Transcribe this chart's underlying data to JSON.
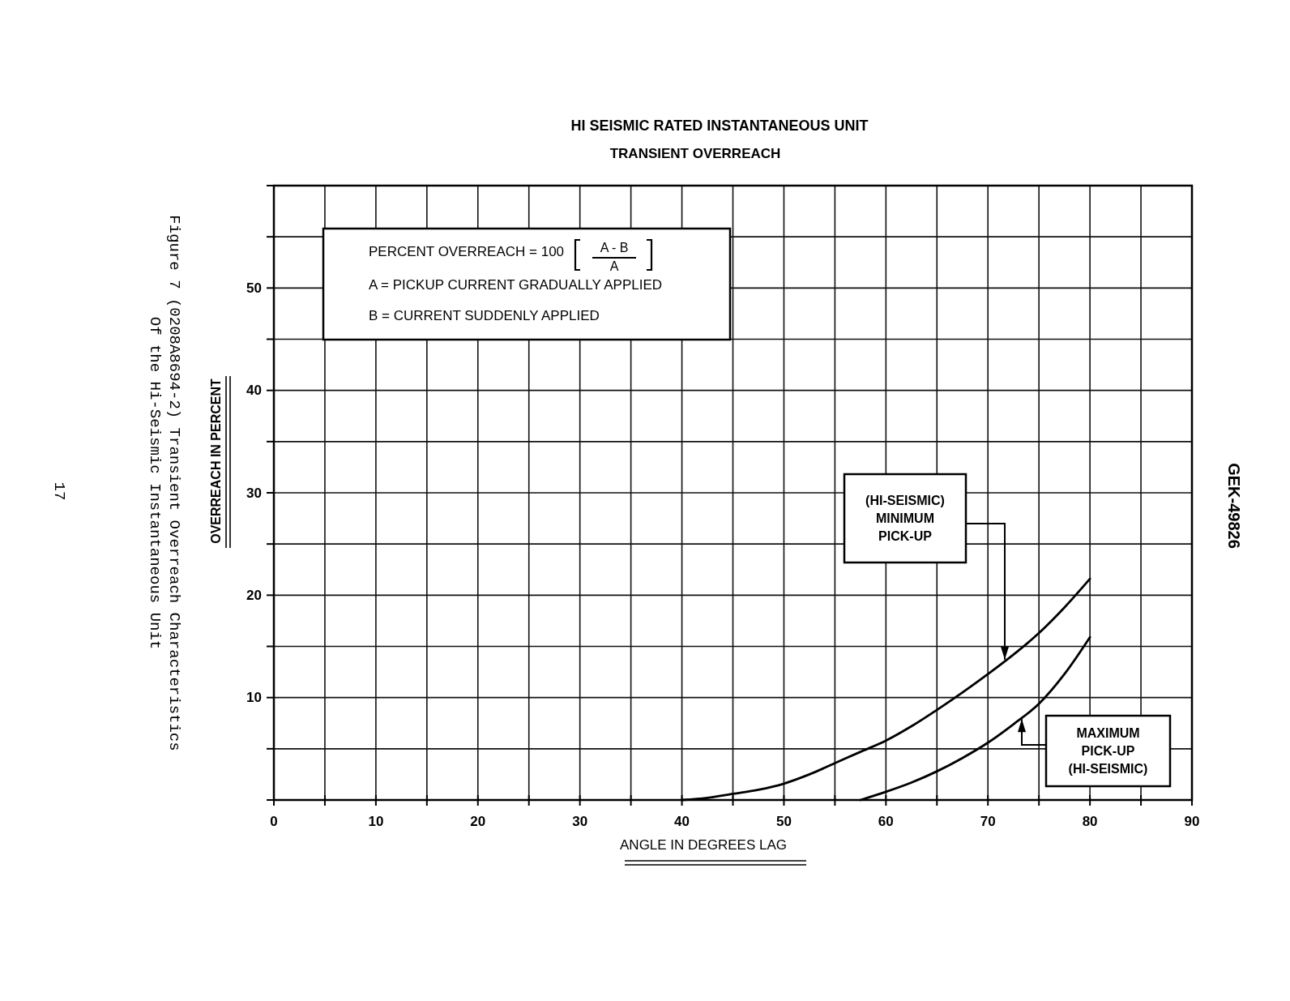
{
  "chart_data": {
    "type": "line",
    "title": "HI SEISMIC RATED INSTANTANEOUS UNIT",
    "subtitle": "TRANSIENT OVERREACH",
    "xlabel": "ANGLE IN DEGREES LAG",
    "ylabel": "OVERREACH IN PERCENT",
    "xlim": [
      0,
      90
    ],
    "ylim": [
      0,
      60
    ],
    "xticks": [
      0,
      {
        "value": 5,
        "label": null
      },
      10,
      {
        "value": 15,
        "label": null
      },
      20,
      {
        "value": 25,
        "label": null
      },
      30,
      {
        "value": 35,
        "label": null
      },
      40,
      {
        "value": 45,
        "label": null
      },
      50,
      {
        "value": 55,
        "label": null
      },
      60,
      {
        "value": 65,
        "label": null
      },
      70,
      {
        "value": 75,
        "label": null
      },
      80,
      {
        "value": 85,
        "label": null
      },
      90
    ],
    "yticks": [
      {
        "value": 0,
        "label": null
      },
      {
        "value": 5,
        "label": null
      },
      10,
      {
        "value": 15,
        "label": null
      },
      20,
      {
        "value": 25,
        "label": null
      },
      30,
      {
        "value": 35,
        "label": null
      },
      40,
      {
        "value": 45,
        "label": null
      },
      50,
      {
        "value": 55,
        "label": null
      },
      {
        "value": 60,
        "label": null
      }
    ],
    "grid": true,
    "line_style": "solid",
    "series": [
      {
        "color": "#000000",
        "x": [
          40,
          42.5,
          45,
          47.5,
          50,
          52.5,
          55,
          57.5,
          60,
          62.5,
          65,
          67.5,
          70,
          72.5,
          75,
          77.5,
          80
        ],
        "values": [
          0,
          0.2,
          0.6,
          1.0,
          1.6,
          2.5,
          3.6,
          4.7,
          5.8,
          7.2,
          8.8,
          10.5,
          12.3,
          14.2,
          16.3,
          18.8,
          21.6
        ]
      },
      {
        "color": "#000000",
        "x": [
          57.5,
          60,
          62.5,
          65,
          67.5,
          70,
          72.5,
          75,
          77.5,
          80
        ],
        "values": [
          0,
          0.8,
          1.7,
          2.8,
          4.1,
          5.6,
          7.4,
          9.4,
          12.3,
          15.9
        ]
      }
    ],
    "annotations": [
      "PERCENT OVERREACH = 100",
      "A - B",
      "A",
      "A = PICKUP CURRENT GRADUALLY APPLIED",
      "B = CURRENT SUDDENLY APPLIED",
      "Figure 7 (0208A8694-2) Transient Overreach Characteristics",
      "Of the Hi-Seismic Instantaneous Unit",
      "17",
      "GEK-49826",
      "(HI-SEISMIC) MINIMUM PICK-UP",
      "MAXIMUM PICK-UP (HI-SEISMIC)"
    ]
  }
}
